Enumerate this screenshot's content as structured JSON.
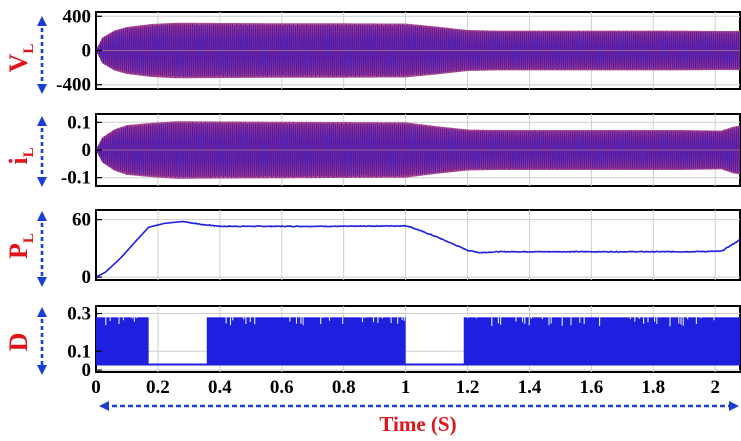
{
  "chart_data": {
    "x_axis": {
      "label": "Time (S)",
      "range": [
        0,
        2.08
      ],
      "ticks": [
        0,
        0.2,
        0.4,
        0.6,
        0.8,
        1,
        1.2,
        1.4,
        1.6,
        1.8,
        2
      ],
      "tick_labels": [
        "0",
        "0.2",
        "0.4",
        "0.6",
        "0.8",
        "1",
        "1.2",
        "1.4",
        "1.6",
        "1.8",
        "2"
      ]
    },
    "panels": [
      {
        "id": "vl",
        "type": "line",
        "ylabel_main": "V",
        "ylabel_sub": "L",
        "ylim": [
          -450,
          450
        ],
        "y_ticks": [
          400,
          0,
          -400
        ],
        "y_tick_labels": [
          "400",
          "0",
          "-400"
        ],
        "colors": [
          "#e0141b",
          "#1f1fe0"
        ],
        "envelope": {
          "x": [
            0,
            0.02,
            0.06,
            0.1,
            0.18,
            0.26,
            0.4,
            0.6,
            0.8,
            1.0,
            1.1,
            1.2,
            1.3,
            1.6,
            1.9,
            2.02,
            2.08
          ],
          "amplitude": [
            0,
            150,
            235,
            275,
            310,
            325,
            322,
            318,
            318,
            315,
            280,
            240,
            232,
            232,
            232,
            228,
            230
          ]
        }
      },
      {
        "id": "il",
        "type": "line",
        "ylabel_main": "i",
        "ylabel_sub": "L",
        "ylim": [
          -0.13,
          0.13
        ],
        "y_ticks": [
          0.1,
          0,
          -0.1
        ],
        "y_tick_labels": [
          "0.1",
          "0",
          "-0.1"
        ],
        "colors": [
          "#e0141b",
          "#1f1fe0"
        ],
        "envelope": {
          "x": [
            0,
            0.02,
            0.06,
            0.1,
            0.18,
            0.26,
            0.4,
            0.6,
            0.8,
            1.0,
            1.1,
            1.2,
            1.3,
            1.6,
            1.9,
            2.02,
            2.06,
            2.08
          ],
          "amplitude": [
            0,
            0.045,
            0.075,
            0.09,
            0.098,
            0.104,
            0.103,
            0.102,
            0.101,
            0.1,
            0.086,
            0.074,
            0.072,
            0.072,
            0.072,
            0.07,
            0.085,
            0.088
          ]
        }
      },
      {
        "id": "pl",
        "type": "line",
        "ylabel_main": "P",
        "ylabel_sub": "L",
        "ylim": [
          -3,
          70
        ],
        "y_ticks": [
          60,
          0
        ],
        "y_tick_labels": [
          "60",
          "0"
        ],
        "colors": [
          "#1f1fe0"
        ],
        "series": {
          "x": [
            0,
            0.03,
            0.08,
            0.13,
            0.17,
            0.22,
            0.28,
            0.34,
            0.4,
            0.6,
            0.8,
            1.0,
            1.01,
            1.1,
            1.15,
            1.2,
            1.24,
            1.3,
            1.5,
            1.7,
            1.9,
            2.02,
            2.05,
            2.08
          ],
          "y": [
            0,
            5,
            20,
            38,
            52,
            56,
            58,
            55,
            53,
            53,
            53,
            53.5,
            53,
            42,
            35,
            28,
            25.5,
            26.5,
            26.5,
            26.5,
            26.5,
            27,
            33,
            39
          ]
        }
      },
      {
        "id": "d",
        "type": "line",
        "ylabel_main": "D",
        "ylabel_sub": "",
        "ylim": [
          -0.01,
          0.34
        ],
        "y_ticks": [
          0.3,
          0.1,
          0
        ],
        "y_tick_labels": [
          "0.3",
          "0.1",
          "0"
        ],
        "colors": [
          "#1f1fe0"
        ],
        "switching": {
          "low": 0.03,
          "high": 0.28,
          "idle_level": 0.03,
          "active_intervals": [
            [
              0,
              0.17
            ],
            [
              0.36,
              1.0
            ],
            [
              1.19,
              2.08
            ]
          ]
        }
      }
    ]
  }
}
